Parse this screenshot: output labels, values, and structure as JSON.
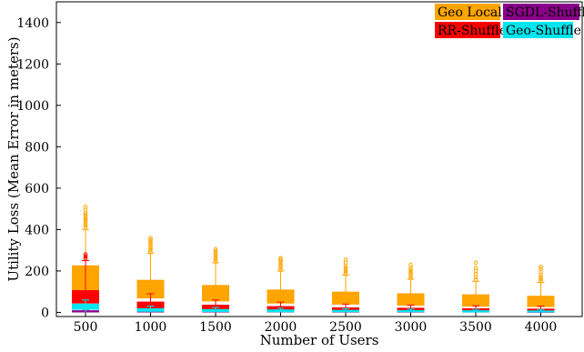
{
  "chart_data": {
    "type": "box",
    "xlabel": "Number of Users",
    "ylabel": "Utility Loss (Mean Error in meters)",
    "ylim": [
      -20,
      1500
    ],
    "yticks": [
      0,
      200,
      400,
      600,
      800,
      1000,
      1200,
      1400
    ],
    "categories": [
      "500",
      "1000",
      "1500",
      "2000",
      "2500",
      "3000",
      "3500",
      "4000"
    ],
    "grid": false,
    "legend_placement": "top-right",
    "series": [
      {
        "name": "Geo Local",
        "color": "#FFA500",
        "boxes": [
          {
            "q1": 105,
            "median": 175,
            "q3": 225,
            "whisker_low": 0,
            "whisker_high": 400,
            "outliers": [
              410,
              420,
              430,
              440,
              450,
              460,
              470,
              480,
              495,
              510
            ]
          },
          {
            "q1": 70,
            "median": 115,
            "q3": 155,
            "whisker_low": 0,
            "whisker_high": 285,
            "outliers": [
              290,
              300,
              310,
              320,
              330,
              340,
              350,
              360
            ]
          },
          {
            "q1": 55,
            "median": 95,
            "q3": 130,
            "whisker_low": 0,
            "whisker_high": 240,
            "outliers": [
              245,
              255,
              265,
              275,
              285,
              295,
              305
            ]
          },
          {
            "q1": 45,
            "median": 75,
            "q3": 108,
            "whisker_low": 0,
            "whisker_high": 200,
            "outliers": [
              205,
              215,
              225,
              235,
              245,
              255,
              262
            ]
          },
          {
            "q1": 40,
            "median": 68,
            "q3": 98,
            "whisker_low": 0,
            "whisker_high": 180,
            "outliers": [
              185,
              195,
              205,
              215,
              225,
              240,
              255
            ]
          },
          {
            "q1": 35,
            "median": 60,
            "q3": 90,
            "whisker_low": 0,
            "whisker_high": 160,
            "outliers": [
              165,
              175,
              185,
              195,
              205,
              215,
              230
            ]
          },
          {
            "q1": 30,
            "median": 55,
            "q3": 85,
            "whisker_low": 0,
            "whisker_high": 150,
            "outliers": [
              158,
              170,
              185,
              200,
              215,
              240
            ]
          },
          {
            "q1": 28,
            "median": 50,
            "q3": 78,
            "whisker_low": 0,
            "whisker_high": 145,
            "outliers": [
              150,
              160,
              170,
              180,
              195,
              210,
              220
            ]
          }
        ]
      },
      {
        "name": "RR-Shuffle",
        "color": "#FF0000",
        "boxes": [
          {
            "q1": 45,
            "median": 70,
            "q3": 105,
            "whisker_low": 0,
            "whisker_high": 250,
            "outliers": [
              260,
              270,
              280
            ]
          },
          {
            "q1": 20,
            "median": 35,
            "q3": 50,
            "whisker_low": 0,
            "whisker_high": 90,
            "outliers": []
          },
          {
            "q1": 12,
            "median": 22,
            "q3": 35,
            "whisker_low": 0,
            "whisker_high": 60,
            "outliers": []
          },
          {
            "q1": 10,
            "median": 18,
            "q3": 28,
            "whisker_low": 0,
            "whisker_high": 50,
            "outliers": []
          },
          {
            "q1": 8,
            "median": 14,
            "q3": 22,
            "whisker_low": 0,
            "whisker_high": 40,
            "outliers": []
          },
          {
            "q1": 7,
            "median": 12,
            "q3": 20,
            "whisker_low": 0,
            "whisker_high": 35,
            "outliers": []
          },
          {
            "q1": 6,
            "median": 11,
            "q3": 18,
            "whisker_low": 0,
            "whisker_high": 32,
            "outliers": []
          },
          {
            "q1": 5,
            "median": 10,
            "q3": 16,
            "whisker_low": 0,
            "whisker_high": 30,
            "outliers": []
          }
        ]
      },
      {
        "name": "SGDL-Shuffle",
        "color": "#8B008B",
        "boxes": [
          {
            "q1": 2,
            "median": 5,
            "q3": 8,
            "whisker_low": 0,
            "whisker_high": 14,
            "outliers": []
          },
          {
            "q1": 2,
            "median": 4,
            "q3": 7,
            "whisker_low": 0,
            "whisker_high": 12,
            "outliers": []
          },
          {
            "q1": 2,
            "median": 4,
            "q3": 7,
            "whisker_low": 0,
            "whisker_high": 12,
            "outliers": []
          },
          {
            "q1": 2,
            "median": 4,
            "q3": 7,
            "whisker_low": 0,
            "whisker_high": 11,
            "outliers": []
          },
          {
            "q1": 2,
            "median": 4,
            "q3": 6,
            "whisker_low": 0,
            "whisker_high": 10,
            "outliers": []
          },
          {
            "q1": 2,
            "median": 4,
            "q3": 6,
            "whisker_low": 0,
            "whisker_high": 10,
            "outliers": []
          },
          {
            "q1": 2,
            "median": 3,
            "q3": 6,
            "whisker_low": 0,
            "whisker_high": 9,
            "outliers": []
          },
          {
            "q1": 2,
            "median": 3,
            "q3": 5,
            "whisker_low": 0,
            "whisker_high": 9,
            "outliers": []
          }
        ]
      },
      {
        "name": "Geo-Shuffle",
        "color": "#00E5EE",
        "boxes": [
          {
            "q1": 15,
            "median": 25,
            "q3": 40,
            "whisker_low": 0,
            "whisker_high": 60,
            "outliers": []
          },
          {
            "q1": 5,
            "median": 10,
            "q3": 18,
            "whisker_low": 0,
            "whisker_high": 30,
            "outliers": []
          },
          {
            "q1": 4,
            "median": 8,
            "q3": 14,
            "whisker_low": 0,
            "whisker_high": 24,
            "outliers": []
          },
          {
            "q1": 3,
            "median": 7,
            "q3": 12,
            "whisker_low": 0,
            "whisker_high": 20,
            "outliers": []
          },
          {
            "q1": 3,
            "median": 6,
            "q3": 10,
            "whisker_low": 0,
            "whisker_high": 18,
            "outliers": []
          },
          {
            "q1": 3,
            "median": 5,
            "q3": 9,
            "whisker_low": 0,
            "whisker_high": 16,
            "outliers": []
          },
          {
            "q1": 2,
            "median": 5,
            "q3": 8,
            "whisker_low": 0,
            "whisker_high": 15,
            "outliers": []
          },
          {
            "q1": 2,
            "median": 4,
            "q3": 7,
            "whisker_low": 0,
            "whisker_high": 14,
            "outliers": []
          }
        ]
      }
    ],
    "legend_order": [
      "Geo Local",
      "SGDL-Shuffle",
      "RR-Shuffle",
      "Geo-Shuffle"
    ]
  }
}
